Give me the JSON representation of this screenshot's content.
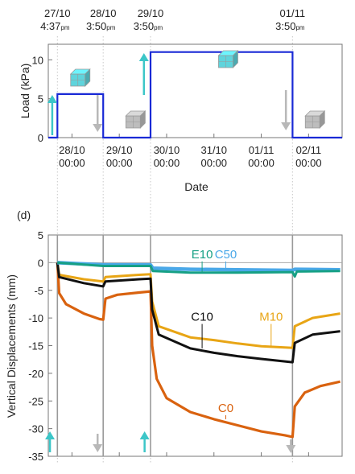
{
  "panel_label": "(d)",
  "chart_data": [
    {
      "type": "line",
      "x_axis": "date",
      "xlabel": "Date",
      "ylabel": "Load (kPa)",
      "ylim": [
        0,
        12
      ],
      "yticks": [
        0,
        5,
        10
      ],
      "xrange": [
        "27/10 12:00",
        "02/11 17:00"
      ],
      "xticks": [
        {
          "date": "28/10",
          "time": "00:00",
          "at": "28/10 00:00"
        },
        {
          "date": "29/10",
          "time": "00:00",
          "at": "29/10 00:00"
        },
        {
          "date": "30/10",
          "time": "00:00",
          "at": "30/10 00:00"
        },
        {
          "date": "31/10",
          "time": "00:00",
          "at": "31/10 00:00"
        },
        {
          "date": "01/11",
          "time": "00:00",
          "at": "01/11 00:00"
        },
        {
          "date": "02/11",
          "time": "00:00",
          "at": "02/11 00:00"
        }
      ],
      "top_annotations": [
        {
          "date": "27/10",
          "time": "4:37",
          "suffix": "pm",
          "at": "27/10 16:37"
        },
        {
          "date": "28/10",
          "time": "3:50",
          "suffix": "pm",
          "at": "28/10 15:50"
        },
        {
          "date": "29/10",
          "time": "3:50",
          "suffix": "pm",
          "at": "29/10 15:50"
        },
        {
          "date": "01/11",
          "time": "3:50",
          "suffix": "pm",
          "at": "01/11 15:50"
        }
      ],
      "series": [
        {
          "color": "#1a2ad6",
          "points": [
            {
              "x": "27/10 12:00",
              "y": 0
            },
            {
              "x": "27/10 16:37",
              "y": 0
            },
            {
              "x": "27/10 16:37",
              "y": 5.6
            },
            {
              "x": "28/10 15:50",
              "y": 5.6
            },
            {
              "x": "28/10 15:50",
              "y": 0
            },
            {
              "x": "29/10 15:50",
              "y": 0
            },
            {
              "x": "29/10 15:50",
              "y": 11
            },
            {
              "x": "01/11 15:50",
              "y": 11
            },
            {
              "x": "01/11 15:50",
              "y": 0
            },
            {
              "x": "02/11 17:00",
              "y": 0
            }
          ]
        }
      ],
      "arrows": [
        {
          "direction": "up",
          "at": "27/10 14:00",
          "color": "#3cc6c8"
        },
        {
          "direction": "down",
          "at": "28/10 13:00",
          "color": "#b8b8b8"
        },
        {
          "direction": "up",
          "at": "29/10 12:30",
          "color": "#3cc6c8"
        },
        {
          "direction": "down",
          "at": "01/11 12:30",
          "color": "#b8b8b8"
        }
      ],
      "cubes": [
        {
          "at": "28/10 03:00",
          "color": "#5fd4dc"
        },
        {
          "at": "29/10 07:00",
          "color": "#bdbdbd"
        },
        {
          "at": "31/10 06:00",
          "color": "#5fd4dc"
        },
        {
          "at": "02/11 02:00",
          "color": "#bdbdbd"
        }
      ]
    },
    {
      "type": "line",
      "x_axis": "date",
      "xlabel": "",
      "ylabel": "Vertical Displacements (mm)",
      "ylim": [
        -35,
        5
      ],
      "yticks": [
        5,
        0,
        -5,
        -10,
        -15,
        -20,
        -25,
        -30,
        -35
      ],
      "xrange": [
        "27/10 12:00",
        "02/11 17:00"
      ],
      "event_lines": [
        "27/10 16:37",
        "28/10 15:50",
        "29/10 15:50",
        "01/11 15:50"
      ],
      "arrows": [
        {
          "direction": "up",
          "at": "27/10 12:50",
          "color": "#3cc6c8"
        },
        {
          "direction": "down",
          "at": "28/10 13:00",
          "color": "#b8b8b8"
        },
        {
          "direction": "up",
          "at": "29/10 12:50",
          "color": "#3cc6c8"
        },
        {
          "direction": "down",
          "at": "01/11 15:00",
          "color": "#b8b8b8"
        }
      ],
      "series": [
        {
          "name": "C0",
          "color": "#d9620f",
          "label_at": {
            "x": "31/10 06:00",
            "y": -27
          },
          "points": [
            {
              "x": "27/10 16:37",
              "y": 0
            },
            {
              "x": "27/10 17:30",
              "y": -5.5
            },
            {
              "x": "27/10 21:00",
              "y": -7.5
            },
            {
              "x": "28/10 06:00",
              "y": -9.2
            },
            {
              "x": "28/10 14:00",
              "y": -10.2
            },
            {
              "x": "28/10 15:50",
              "y": -10.3
            },
            {
              "x": "28/10 17:00",
              "y": -6.5
            },
            {
              "x": "28/10 23:00",
              "y": -5.8
            },
            {
              "x": "29/10 10:00",
              "y": -5.4
            },
            {
              "x": "29/10 15:50",
              "y": -5.2
            },
            {
              "x": "29/10 16:40",
              "y": -15
            },
            {
              "x": "29/10 19:00",
              "y": -21
            },
            {
              "x": "30/10 00:00",
              "y": -24.5
            },
            {
              "x": "30/10 12:00",
              "y": -27
            },
            {
              "x": "31/10 00:00",
              "y": -28.3
            },
            {
              "x": "31/10 12:00",
              "y": -29.4
            },
            {
              "x": "01/11 00:00",
              "y": -30.5
            },
            {
              "x": "01/11 12:00",
              "y": -31.2
            },
            {
              "x": "01/11 15:50",
              "y": -31.5
            },
            {
              "x": "01/11 17:00",
              "y": -26
            },
            {
              "x": "01/11 22:00",
              "y": -23.5
            },
            {
              "x": "02/11 06:00",
              "y": -22.3
            },
            {
              "x": "02/11 16:00",
              "y": -21.5
            }
          ]
        },
        {
          "name": "M10",
          "color": "#e8a515",
          "label_at": {
            "x": "01/11 05:00",
            "y": -10.5
          },
          "points": [
            {
              "x": "27/10 16:37",
              "y": 0
            },
            {
              "x": "27/10 17:30",
              "y": -2.2
            },
            {
              "x": "28/10 06:00",
              "y": -3
            },
            {
              "x": "28/10 15:50",
              "y": -3.4
            },
            {
              "x": "28/10 17:00",
              "y": -2.6
            },
            {
              "x": "29/10 10:00",
              "y": -2.2
            },
            {
              "x": "29/10 15:50",
              "y": -2.1
            },
            {
              "x": "29/10 16:40",
              "y": -7
            },
            {
              "x": "29/10 20:00",
              "y": -11.5
            },
            {
              "x": "30/10 12:00",
              "y": -13.5
            },
            {
              "x": "31/10 00:00",
              "y": -14
            },
            {
              "x": "31/10 12:00",
              "y": -14.6
            },
            {
              "x": "01/11 00:00",
              "y": -15.1
            },
            {
              "x": "01/11 15:50",
              "y": -15.4
            },
            {
              "x": "01/11 17:00",
              "y": -11.5
            },
            {
              "x": "02/11 02:00",
              "y": -10
            },
            {
              "x": "02/11 16:00",
              "y": -9.2
            }
          ]
        },
        {
          "name": "C10",
          "color": "#111111",
          "label_at": {
            "x": "30/10 18:00",
            "y": -10.5
          },
          "points": [
            {
              "x": "27/10 16:37",
              "y": 0
            },
            {
              "x": "27/10 17:30",
              "y": -2.6
            },
            {
              "x": "28/10 06:00",
              "y": -3.7
            },
            {
              "x": "28/10 15:50",
              "y": -4.3
            },
            {
              "x": "28/10 17:00",
              "y": -3.4
            },
            {
              "x": "29/10 10:00",
              "y": -3
            },
            {
              "x": "29/10 15:50",
              "y": -2.9
            },
            {
              "x": "29/10 16:40",
              "y": -8.5
            },
            {
              "x": "29/10 20:00",
              "y": -13
            },
            {
              "x": "30/10 12:00",
              "y": -15.5
            },
            {
              "x": "31/10 00:00",
              "y": -16.3
            },
            {
              "x": "31/10 12:00",
              "y": -16.9
            },
            {
              "x": "01/11 00:00",
              "y": -17.4
            },
            {
              "x": "01/11 15:50",
              "y": -18
            },
            {
              "x": "01/11 17:00",
              "y": -14.5
            },
            {
              "x": "02/11 02:00",
              "y": -13
            },
            {
              "x": "02/11 16:00",
              "y": -12.4
            }
          ]
        },
        {
          "name": "C50",
          "color": "#4aa8e8",
          "label_at": {
            "x": "31/10 06:00",
            "y": 0.8
          },
          "points": [
            {
              "x": "27/10 16:37",
              "y": 0
            },
            {
              "x": "28/10 15:50",
              "y": -0.4
            },
            {
              "x": "29/10 15:50",
              "y": -0.4
            },
            {
              "x": "29/10 17:00",
              "y": -1
            },
            {
              "x": "30/10 12:00",
              "y": -1.2
            },
            {
              "x": "31/10 12:00",
              "y": -1.3
            },
            {
              "x": "01/11 15:50",
              "y": -1.4
            },
            {
              "x": "01/11 17:00",
              "y": -1.2
            },
            {
              "x": "02/11 16:00",
              "y": -1.3
            }
          ]
        },
        {
          "name": "E10",
          "color": "#16a085",
          "label_at": {
            "x": "30/10 18:00",
            "y": 0.8
          },
          "points": [
            {
              "x": "27/10 16:37",
              "y": 0
            },
            {
              "x": "28/10 15:50",
              "y": -0.6
            },
            {
              "x": "29/10 15:50",
              "y": -0.6
            },
            {
              "x": "29/10 17:00",
              "y": -1.5
            },
            {
              "x": "30/10 12:00",
              "y": -1.8
            },
            {
              "x": "31/10 12:00",
              "y": -1.8
            },
            {
              "x": "01/11 15:50",
              "y": -1.7
            },
            {
              "x": "01/11 17:00",
              "y": -2.5
            },
            {
              "x": "01/11 18:00",
              "y": -1.6
            },
            {
              "x": "02/11 16:00",
              "y": -1.5
            }
          ]
        }
      ]
    }
  ]
}
